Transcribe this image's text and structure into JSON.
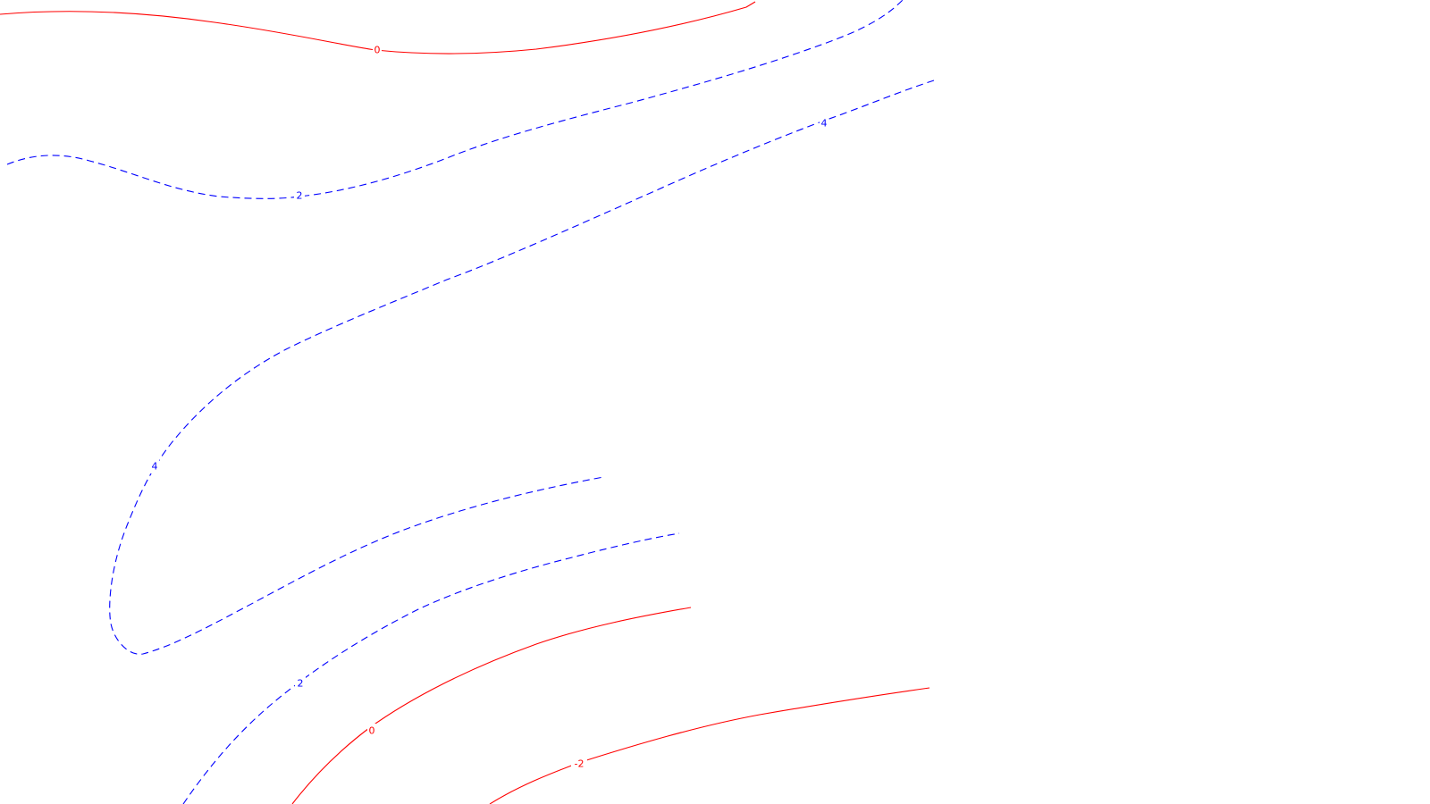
{
  "chart_data": {
    "type": "contour",
    "title": "",
    "xlabel": "",
    "ylabel": "",
    "grid": false,
    "legend": "none",
    "colors": {
      "negative": "#ff0000",
      "positive": "#0000ff",
      "background": "#ffffff"
    },
    "line_styles": {
      "negative": "solid",
      "positive": "dashed"
    },
    "levels": [
      {
        "label": "0",
        "level": 0,
        "sign": "negative"
      },
      {
        "label": "2",
        "level": 2,
        "sign": "positive"
      },
      {
        "label": "4",
        "level": 4,
        "sign": "positive"
      },
      {
        "label": "4",
        "level": 4,
        "sign": "positive"
      },
      {
        "label": "2",
        "level": 2,
        "sign": "positive"
      },
      {
        "label": "0",
        "level": 0,
        "sign": "negative"
      },
      {
        "label": "-2",
        "level": -2,
        "sign": "negative"
      }
    ]
  }
}
